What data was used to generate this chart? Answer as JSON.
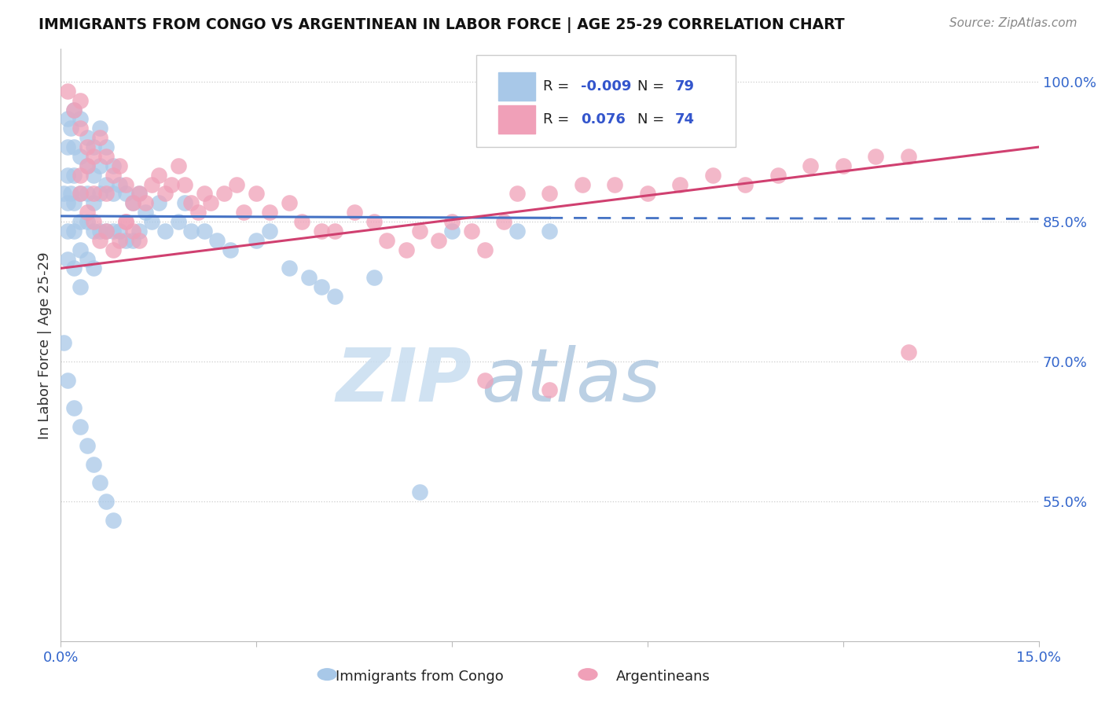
{
  "title": "IMMIGRANTS FROM CONGO VS ARGENTINEAN IN LABOR FORCE | AGE 25-29 CORRELATION CHART",
  "source_text": "Source: ZipAtlas.com",
  "ylabel": "In Labor Force | Age 25-29",
  "xlim": [
    0.0,
    0.15
  ],
  "ylim": [
    0.4,
    1.035
  ],
  "xtick_positions": [
    0.0,
    0.03,
    0.06,
    0.09,
    0.12,
    0.15
  ],
  "xticklabels": [
    "0.0%",
    "",
    "",
    "",
    "",
    "15.0%"
  ],
  "yticks_right": [
    0.55,
    0.7,
    0.85,
    1.0
  ],
  "ytick_labels_right": [
    "55.0%",
    "70.0%",
    "85.0%",
    "100.0%"
  ],
  "congo_color": "#a8c8e8",
  "argentina_color": "#f0a0b8",
  "congo_line_color": "#4472c4",
  "argentina_line_color": "#d04070",
  "congo_R": -0.009,
  "congo_N": 79,
  "argentina_R": 0.076,
  "argentina_N": 74,
  "congo_trend_x": [
    0.0,
    0.075,
    0.15
  ],
  "congo_trend_y": [
    0.855,
    0.854,
    0.854
  ],
  "congo_trend_solid_end": 0.075,
  "argentina_trend_x": [
    0.0,
    0.15
  ],
  "argentina_trend_y": [
    0.8,
    0.93
  ],
  "congo_x": [
    0.0005,
    0.001,
    0.001,
    0.001,
    0.001,
    0.001,
    0.001,
    0.0015,
    0.0015,
    0.002,
    0.002,
    0.002,
    0.002,
    0.002,
    0.002,
    0.003,
    0.003,
    0.003,
    0.003,
    0.003,
    0.003,
    0.004,
    0.004,
    0.004,
    0.004,
    0.004,
    0.005,
    0.005,
    0.005,
    0.005,
    0.005,
    0.006,
    0.006,
    0.006,
    0.006,
    0.007,
    0.007,
    0.007,
    0.008,
    0.008,
    0.008,
    0.009,
    0.009,
    0.01,
    0.01,
    0.011,
    0.011,
    0.012,
    0.012,
    0.013,
    0.014,
    0.015,
    0.016,
    0.018,
    0.019,
    0.02,
    0.022,
    0.024,
    0.026,
    0.03,
    0.032,
    0.035,
    0.038,
    0.04,
    0.042,
    0.048,
    0.055,
    0.06,
    0.07,
    0.075,
    0.0005,
    0.001,
    0.002,
    0.003,
    0.004,
    0.005,
    0.006,
    0.007,
    0.008
  ],
  "congo_y": [
    0.88,
    0.96,
    0.93,
    0.9,
    0.87,
    0.84,
    0.81,
    0.95,
    0.88,
    0.97,
    0.93,
    0.9,
    0.87,
    0.84,
    0.8,
    0.96,
    0.92,
    0.88,
    0.85,
    0.82,
    0.78,
    0.94,
    0.91,
    0.88,
    0.85,
    0.81,
    0.93,
    0.9,
    0.87,
    0.84,
    0.8,
    0.95,
    0.91,
    0.88,
    0.84,
    0.93,
    0.89,
    0.84,
    0.91,
    0.88,
    0.84,
    0.89,
    0.84,
    0.88,
    0.83,
    0.87,
    0.83,
    0.88,
    0.84,
    0.86,
    0.85,
    0.87,
    0.84,
    0.85,
    0.87,
    0.84,
    0.84,
    0.83,
    0.82,
    0.83,
    0.84,
    0.8,
    0.79,
    0.78,
    0.77,
    0.79,
    0.56,
    0.84,
    0.84,
    0.84,
    0.72,
    0.68,
    0.65,
    0.63,
    0.61,
    0.59,
    0.57,
    0.55,
    0.53
  ],
  "argentina_x": [
    0.001,
    0.002,
    0.003,
    0.003,
    0.004,
    0.004,
    0.005,
    0.005,
    0.006,
    0.007,
    0.007,
    0.008,
    0.009,
    0.01,
    0.01,
    0.011,
    0.012,
    0.013,
    0.014,
    0.015,
    0.016,
    0.017,
    0.018,
    0.019,
    0.02,
    0.021,
    0.022,
    0.023,
    0.025,
    0.027,
    0.028,
    0.03,
    0.032,
    0.035,
    0.037,
    0.04,
    0.042,
    0.045,
    0.048,
    0.05,
    0.053,
    0.055,
    0.058,
    0.06,
    0.063,
    0.065,
    0.068,
    0.07,
    0.075,
    0.08,
    0.085,
    0.09,
    0.095,
    0.1,
    0.105,
    0.11,
    0.115,
    0.12,
    0.125,
    0.13,
    0.003,
    0.003,
    0.004,
    0.005,
    0.006,
    0.007,
    0.008,
    0.009,
    0.01,
    0.011,
    0.012,
    0.065,
    0.075,
    0.13
  ],
  "argentina_y": [
    0.99,
    0.97,
    0.98,
    0.95,
    0.93,
    0.91,
    0.92,
    0.88,
    0.94,
    0.92,
    0.88,
    0.9,
    0.91,
    0.89,
    0.85,
    0.87,
    0.88,
    0.87,
    0.89,
    0.9,
    0.88,
    0.89,
    0.91,
    0.89,
    0.87,
    0.86,
    0.88,
    0.87,
    0.88,
    0.89,
    0.86,
    0.88,
    0.86,
    0.87,
    0.85,
    0.84,
    0.84,
    0.86,
    0.85,
    0.83,
    0.82,
    0.84,
    0.83,
    0.85,
    0.84,
    0.82,
    0.85,
    0.88,
    0.88,
    0.89,
    0.89,
    0.88,
    0.89,
    0.9,
    0.89,
    0.9,
    0.91,
    0.91,
    0.92,
    0.92,
    0.9,
    0.88,
    0.86,
    0.85,
    0.83,
    0.84,
    0.82,
    0.83,
    0.85,
    0.84,
    0.83,
    0.68,
    0.67,
    0.71
  ],
  "watermark_zip": "ZIP",
  "watermark_atlas": "atlas",
  "legend_r1": "R = -0.009",
  "legend_n1": "N = 79",
  "legend_r2": "R =   0.076",
  "legend_n2": "N = 74"
}
